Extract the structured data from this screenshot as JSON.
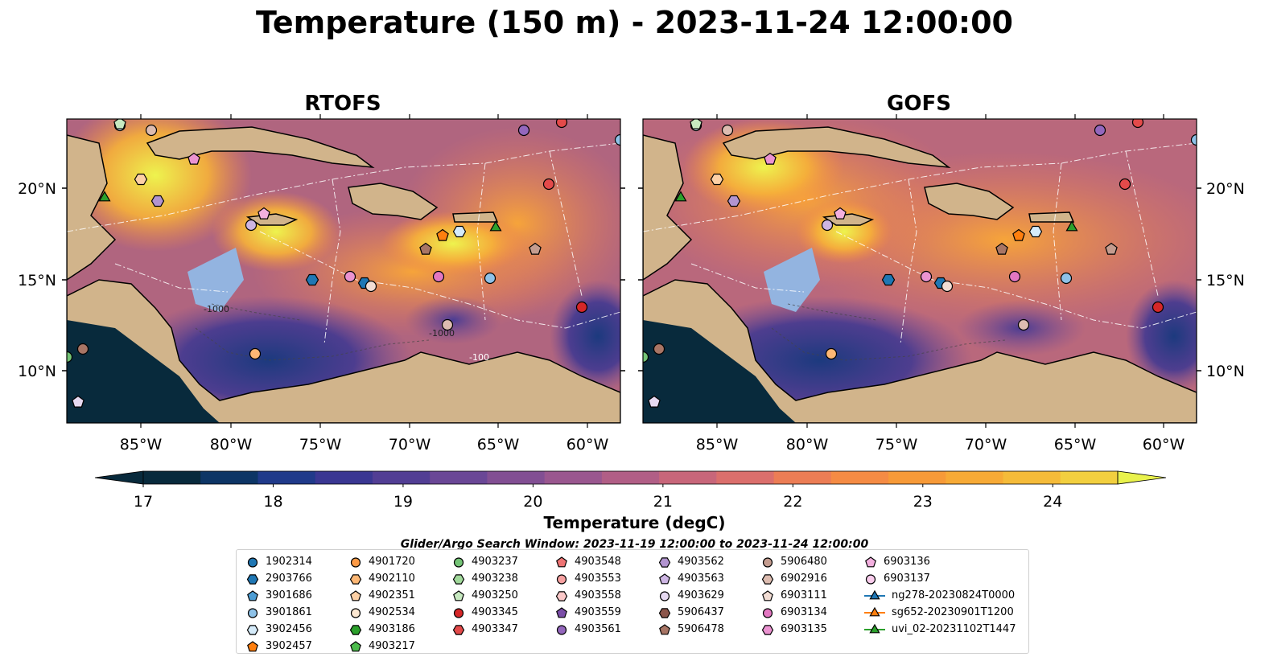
{
  "title": "Temperature (150 m) - 2023-11-24 12:00:00",
  "panels": [
    {
      "title": "RTOFS"
    },
    {
      "title": "GOFS"
    }
  ],
  "axes": {
    "lon_ticks": [
      "85°W",
      "80°W",
      "75°W",
      "70°W",
      "65°W",
      "60°W"
    ],
    "lat_ticks": [
      "20°N",
      "15°N",
      "10°N"
    ]
  },
  "colorbar": {
    "label": "Temperature (degC)",
    "ticks": [
      "17",
      "18",
      "19",
      "20",
      "21",
      "22",
      "23",
      "24"
    ],
    "min": 17,
    "max": 24.5,
    "colors": [
      "#082a3c",
      "#0d3565",
      "#203a8a",
      "#3a3792",
      "#523e94",
      "#6a4796",
      "#824f93",
      "#9a578f",
      "#b15e86",
      "#c8667a",
      "#db6f6c",
      "#ec7d55",
      "#f58b44",
      "#f79a38",
      "#f7aa36",
      "#f5bb39",
      "#f2cf3f",
      "#e9f24c"
    ]
  },
  "bathymetry_labels": [
    "-100",
    "-1000",
    "-1000"
  ],
  "search_window": "Glider/Argo Search Window: 2023-11-19 12:00:00 to 2023-11-24 12:00:00",
  "legend": {
    "columns": [
      [
        {
          "label": "1902314",
          "color": "#1f77b4",
          "shape": "circle"
        },
        {
          "label": "2903766",
          "color": "#1f77b4",
          "shape": "hexagon"
        },
        {
          "label": "3901686",
          "color": "#4d9dd4",
          "shape": "pentagon"
        },
        {
          "label": "3901861",
          "color": "#8ec2e8",
          "shape": "circle"
        },
        {
          "label": "3902456",
          "color": "#d5ebfa",
          "shape": "hexagon"
        },
        {
          "label": "3902457",
          "color": "#ff7f0e",
          "shape": "pentagon"
        }
      ],
      [
        {
          "label": "4901720",
          "color": "#fd9a45",
          "shape": "circle"
        },
        {
          "label": "4902110",
          "color": "#fdb774",
          "shape": "hexagon"
        },
        {
          "label": "4902351",
          "color": "#fdd0a5",
          "shape": "pentagon"
        },
        {
          "label": "4902534",
          "color": "#fde8d2",
          "shape": "circle"
        },
        {
          "label": "4903186",
          "color": "#2ca02c",
          "shape": "hexagon"
        },
        {
          "label": "4903217",
          "color": "#4cbb4c",
          "shape": "pentagon"
        }
      ],
      [
        {
          "label": "4903237",
          "color": "#74c476",
          "shape": "circle"
        },
        {
          "label": "4903238",
          "color": "#a1d99b",
          "shape": "hexagon"
        },
        {
          "label": "4903250",
          "color": "#c7e9c0",
          "shape": "pentagon"
        },
        {
          "label": "4903345",
          "color": "#d62728",
          "shape": "circle"
        },
        {
          "label": "4903347",
          "color": "#e34a4a",
          "shape": "hexagon"
        }
      ],
      [
        {
          "label": "4903548",
          "color": "#ef7474",
          "shape": "pentagon"
        },
        {
          "label": "4903553",
          "color": "#f7a1a1",
          "shape": "circle"
        },
        {
          "label": "4903558",
          "color": "#fcc9c9",
          "shape": "hexagon"
        },
        {
          "label": "4903559",
          "color": "#7b4ea8",
          "shape": "pentagon"
        },
        {
          "label": "4903561",
          "color": "#9467bd",
          "shape": "circle"
        }
      ],
      [
        {
          "label": "4903562",
          "color": "#b294d0",
          "shape": "hexagon"
        },
        {
          "label": "4903563",
          "color": "#cdb5e3",
          "shape": "pentagon"
        },
        {
          "label": "4903629",
          "color": "#e6d9f1",
          "shape": "circle"
        },
        {
          "label": "5906437",
          "color": "#8c564b",
          "shape": "hexagon"
        },
        {
          "label": "5906478",
          "color": "#a87565",
          "shape": "pentagon"
        }
      ],
      [
        {
          "label": "5906480",
          "color": "#c49c8f",
          "shape": "circle"
        },
        {
          "label": "6902916",
          "color": "#ddbcb0",
          "shape": "hexagon"
        },
        {
          "label": "6903111",
          "color": "#f2ddd4",
          "shape": "pentagon"
        },
        {
          "label": "6903134",
          "color": "#e377c2",
          "shape": "circle"
        },
        {
          "label": "6903135",
          "color": "#eb93d1",
          "shape": "hexagon"
        }
      ],
      [
        {
          "label": "6903136",
          "color": "#f3b0df",
          "shape": "pentagon"
        },
        {
          "label": "6903137",
          "color": "#f9ccec",
          "shape": "circle"
        },
        {
          "label": "ng278-20230824T0000",
          "color": "#1f77b4",
          "shape": "triangle-line"
        },
        {
          "label": "sg652-20230901T1200",
          "color": "#ff7f0e",
          "shape": "triangle-line"
        },
        {
          "label": "uvi_02-20231102T1447",
          "color": "#2ca02c",
          "shape": "triangle-line"
        }
      ]
    ]
  }
}
